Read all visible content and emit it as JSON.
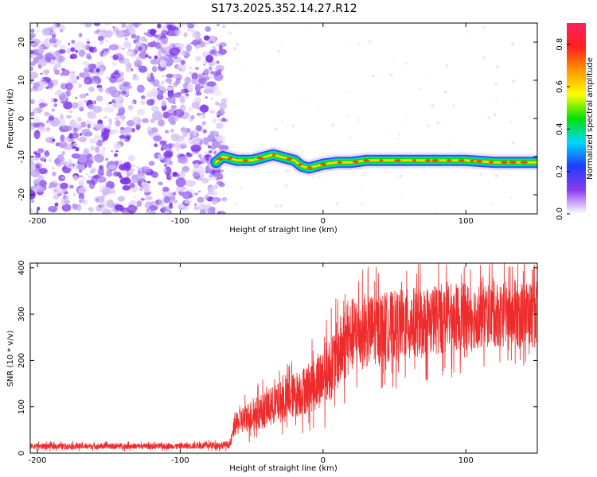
{
  "title": "S173.2025.352.14.27.R12",
  "colors": {
    "snr_line": "#ee2c2c",
    "scatter_dot": "#8a3cf0",
    "track_core": "#ff3000",
    "track_mid": "#ffd400",
    "track_edge": "#00d8b0",
    "track_halo": "#1e3cff"
  },
  "chart_data": [
    {
      "type": "heatmap",
      "name": "spectrogram",
      "xlabel": "Height of straight line (km)",
      "ylabel": "Frequency (Hz)",
      "xlim": [
        -205,
        150
      ],
      "ylim": [
        -25,
        25
      ],
      "xticks": [
        -200,
        -100,
        0,
        100
      ],
      "yticks": [
        -20,
        -10,
        0,
        10,
        20
      ],
      "noise_region_x": [
        -205,
        -72
      ],
      "colorbar": {
        "label": "Normalized spectral amplitude",
        "range": [
          0.0,
          0.9
        ],
        "ticks": [
          0.0,
          0.2,
          0.4,
          0.6,
          0.8
        ],
        "tick_labels": [
          "0.0",
          "0.2",
          "0.4",
          "0.6",
          "0.8"
        ],
        "colormap": [
          "#ffffff",
          "#8a3cf0",
          "#1e3cff",
          "#00d8ff",
          "#00e000",
          "#ffff00",
          "#ff9900",
          "#ff2020",
          "#ff2060"
        ]
      },
      "ridge": {
        "x": [
          -75,
          -70,
          -65,
          -60,
          -55,
          -50,
          -45,
          -40,
          -35,
          -30,
          -25,
          -20,
          -15,
          -10,
          -5,
          0,
          10,
          20,
          30,
          40,
          60,
          80,
          100,
          120,
          140,
          150
        ],
        "frequency": [
          -11.5,
          -10,
          -10.5,
          -11,
          -11,
          -11,
          -10.5,
          -10,
          -9.5,
          -10,
          -10.5,
          -11,
          -12.5,
          -13,
          -12.5,
          -12,
          -11.5,
          -11.5,
          -11,
          -11,
          -11,
          -11,
          -11,
          -11.5,
          -11.5,
          -11.5
        ]
      }
    },
    {
      "type": "line",
      "name": "snr",
      "xlabel": "Height of straight line (km)",
      "ylabel": "SNR (10 * v/v)",
      "xlim": [
        -205,
        150
      ],
      "ylim": [
        0,
        410
      ],
      "xticks": [
        -200,
        -100,
        0,
        100
      ],
      "yticks": [
        0,
        100,
        200,
        300,
        400
      ],
      "envelope": {
        "x": [
          -205,
          -100,
          -65,
          -62,
          -55,
          -40,
          -20,
          -5,
          5,
          15,
          20,
          40,
          60,
          80,
          100,
          120,
          150
        ],
        "mean": [
          15,
          15,
          18,
          60,
          75,
          95,
          125,
          150,
          185,
          235,
          255,
          270,
          280,
          290,
          295,
          300,
          300
        ],
        "spread": [
          7,
          7,
          9,
          25,
          35,
          45,
          55,
          65,
          80,
          90,
          90,
          85,
          85,
          85,
          80,
          80,
          80
        ]
      }
    }
  ]
}
